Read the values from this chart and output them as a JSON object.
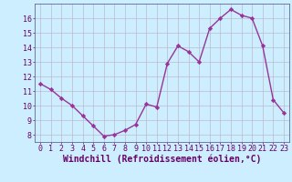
{
  "x": [
    0,
    1,
    2,
    3,
    4,
    5,
    6,
    7,
    8,
    9,
    10,
    11,
    12,
    13,
    14,
    15,
    16,
    17,
    18,
    19,
    20,
    21,
    22,
    23
  ],
  "y": [
    11.5,
    11.1,
    10.5,
    10.0,
    9.3,
    8.6,
    7.9,
    8.0,
    8.3,
    8.7,
    10.1,
    9.9,
    12.9,
    14.1,
    13.7,
    13.0,
    15.3,
    16.0,
    16.6,
    16.2,
    16.0,
    14.1,
    10.4,
    9.5
  ],
  "line_color": "#993399",
  "marker": "D",
  "marker_size": 2.2,
  "linewidth": 1.0,
  "xlabel": "Windchill (Refroidissement éolien,°C)",
  "xlabel_fontsize": 7,
  "bg_color": "#cceeff",
  "grid_color": "#bbbbcc",
  "xlim": [
    -0.5,
    23.5
  ],
  "ylim": [
    7.5,
    17.0
  ],
  "yticks": [
    8,
    9,
    10,
    11,
    12,
    13,
    14,
    15,
    16
  ],
  "xticks": [
    0,
    1,
    2,
    3,
    4,
    5,
    6,
    7,
    8,
    9,
    10,
    11,
    12,
    13,
    14,
    15,
    16,
    17,
    18,
    19,
    20,
    21,
    22,
    23
  ],
  "tick_color": "#660066",
  "tick_fontsize": 6,
  "spine_color": "#666699"
}
